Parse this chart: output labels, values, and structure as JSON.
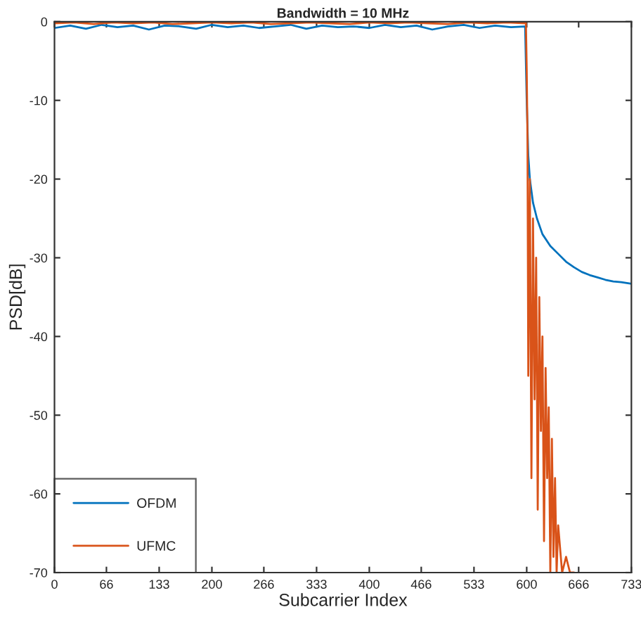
{
  "chart_data": {
    "type": "line",
    "title": "Bandwidth = 10 MHz",
    "xlabel": "Subcarrier Index",
    "ylabel": "PSD[dB]",
    "xlim": [
      0,
      733
    ],
    "ylim": [
      -70,
      0
    ],
    "xticks": [
      0,
      66,
      133,
      200,
      266,
      333,
      400,
      466,
      533,
      600,
      666,
      733
    ],
    "yticks": [
      -70,
      -60,
      -50,
      -40,
      -30,
      -20,
      -10,
      0
    ],
    "grid": false,
    "legend": "bottom left",
    "series": [
      {
        "name": "OFDM",
        "color": "#0072bd",
        "x": [
          0,
          20,
          40,
          60,
          80,
          100,
          120,
          140,
          160,
          180,
          200,
          220,
          240,
          260,
          280,
          300,
          320,
          340,
          360,
          380,
          400,
          420,
          440,
          460,
          480,
          500,
          520,
          540,
          560,
          580,
          598,
          600,
          602,
          604,
          608,
          613,
          620,
          630,
          640,
          650,
          660,
          670,
          680,
          690,
          700,
          710,
          720,
          733
        ],
        "values": [
          -0.8,
          -0.5,
          -0.9,
          -0.4,
          -0.7,
          -0.5,
          -1.0,
          -0.5,
          -0.6,
          -0.9,
          -0.4,
          -0.7,
          -0.5,
          -0.8,
          -0.6,
          -0.4,
          -0.9,
          -0.5,
          -0.7,
          -0.6,
          -0.8,
          -0.4,
          -0.7,
          -0.5,
          -1.0,
          -0.6,
          -0.4,
          -0.8,
          -0.5,
          -0.7,
          -0.6,
          -10,
          -17,
          -20,
          -23,
          -25,
          -27,
          -28.5,
          -29.5,
          -30.5,
          -31.2,
          -31.8,
          -32.2,
          -32.5,
          -32.8,
          -33,
          -33.1,
          -33.3
        ]
      },
      {
        "name": "UFMC",
        "color": "#d95319",
        "x": [
          0,
          25,
          50,
          75,
          100,
          125,
          150,
          175,
          200,
          225,
          250,
          275,
          300,
          325,
          350,
          375,
          400,
          425,
          450,
          475,
          500,
          525,
          550,
          575,
          599,
          600,
          601,
          602,
          604,
          606,
          608,
          610,
          612,
          614,
          616,
          618,
          620,
          622,
          624,
          626,
          628,
          630,
          632,
          634,
          636,
          638,
          640,
          645,
          650,
          655,
          660
        ],
        "values": [
          -0.2,
          -0.1,
          -0.3,
          -0.1,
          -0.2,
          -0.1,
          -0.3,
          -0.2,
          -0.1,
          -0.2,
          -0.1,
          -0.3,
          -0.2,
          -0.1,
          -0.2,
          -0.3,
          -0.1,
          -0.2,
          -0.1,
          -0.2,
          -0.3,
          -0.1,
          -0.2,
          -0.1,
          -0.2,
          -6,
          -15,
          -45,
          -20,
          -58,
          -25,
          -48,
          -30,
          -62,
          -35,
          -52,
          -40,
          -66,
          -44,
          -58,
          -49,
          -70,
          -53,
          -68,
          -58,
          -70,
          -64,
          -70,
          -68,
          -70,
          -70
        ]
      }
    ]
  }
}
